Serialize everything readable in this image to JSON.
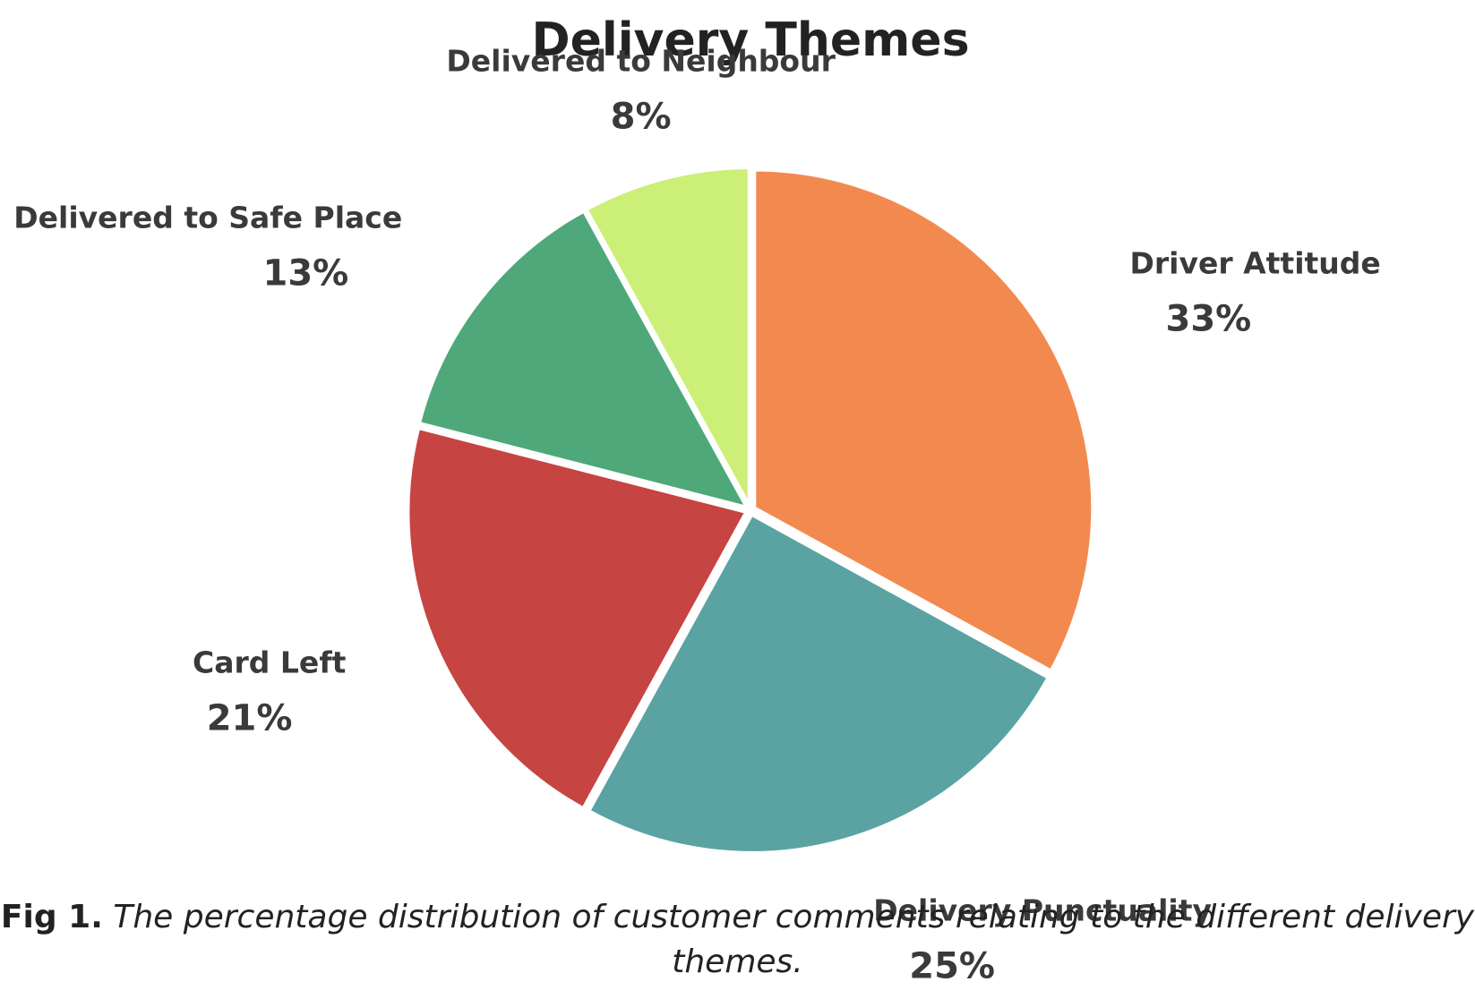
{
  "chart_data": {
    "type": "pie",
    "title": "Delivery Themes",
    "slices": [
      {
        "label": "Driver Attitude",
        "value": 33,
        "value_text": "33%",
        "color": "#f28a50"
      },
      {
        "label": "Delivery Punctuality",
        "value": 25,
        "value_text": "25%",
        "color": "#5ba3a3"
      },
      {
        "label": "Card Left",
        "value": 21,
        "value_text": "21%",
        "color": "#c64442"
      },
      {
        "label": "Delivered to Safe Place",
        "value": 13,
        "value_text": "13%",
        "color": "#4ea87a"
      },
      {
        "label": "Delivered to Neighbour",
        "value": 8,
        "value_text": "8%",
        "color": "#ccef78"
      }
    ]
  },
  "caption": {
    "figure_label": "Fig 1.",
    "text": "The percentage distribution of customer comments relating to the different delivery themes."
  }
}
